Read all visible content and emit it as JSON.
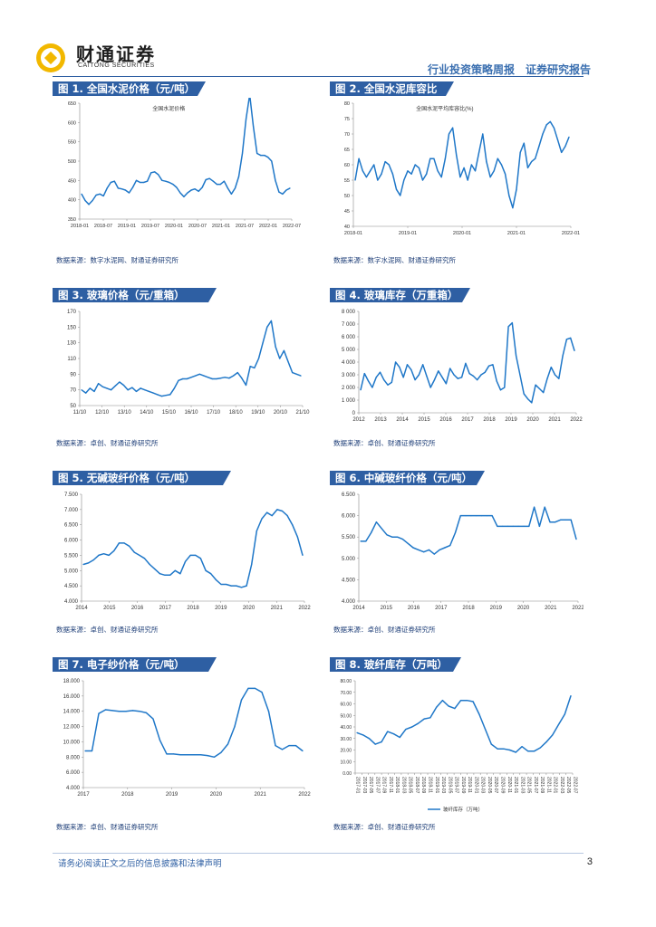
{
  "header": {
    "brand_cn": "财通证券",
    "brand_en": "CAITONG SECURITIES",
    "report_title": "行业投资策略周报　证券研究报告"
  },
  "footer": {
    "disclaimer": "请务必阅读正文之后的信息披露和法律声明",
    "page_number": "3"
  },
  "colors": {
    "accent": "#2e5fa3",
    "line": "#1f77c8"
  },
  "figures": [
    {
      "title": "图 1. 全国水泥价格（元/吨）",
      "source": "数据来源：数字水泥网、财通证券研究所"
    },
    {
      "title": "图 2. 全国水泥库容比",
      "source": "数据来源：数字水泥网、财通证券研究所"
    },
    {
      "title": "图 3. 玻璃价格（元/重箱）",
      "source": "数据来源：卓创、财通证券研究所"
    },
    {
      "title": "图 4. 玻璃库存（万重箱）",
      "source": "数据来源：卓创、财通证券研究所"
    },
    {
      "title": "图 5. 无碱玻纤价格（元/吨）",
      "source": "数据来源：卓创、财通证券研究所"
    },
    {
      "title": "图 6. 中碱玻纤价格（元/吨）",
      "source": "数据来源：卓创、财通证券研究所"
    },
    {
      "title": "图 7. 电子纱价格（元/吨）",
      "source": "数据来源：卓创、财通证券研究所"
    },
    {
      "title": "图 8. 玻纤库存（万吨）",
      "source": "数据来源：卓创、财通证券研究所"
    }
  ],
  "chart_data": [
    {
      "type": "line",
      "inner_title": "全国水泥价格",
      "x_ticks": [
        "2018-01",
        "2018-07",
        "2019-01",
        "2019-07",
        "2020-01",
        "2020-07",
        "2021-01",
        "2021-07",
        "2022-01",
        "2022-07"
      ],
      "y_ticks": [
        "350",
        "400",
        "450",
        "500",
        "550",
        "600",
        "650"
      ],
      "ylim": [
        350,
        650
      ],
      "values": [
        415,
        398,
        388,
        398,
        412,
        415,
        410,
        430,
        445,
        448,
        430,
        428,
        425,
        418,
        432,
        450,
        445,
        445,
        448,
        470,
        472,
        465,
        450,
        448,
        445,
        440,
        432,
        418,
        408,
        418,
        425,
        428,
        422,
        432,
        452,
        455,
        448,
        440,
        440,
        448,
        430,
        415,
        430,
        460,
        520,
        610,
        672,
        590,
        520,
        515,
        515,
        510,
        500,
        450,
        420,
        415,
        425,
        430
      ]
    },
    {
      "type": "line",
      "inner_title": "全国水泥平均库容比(%)",
      "x_ticks": [
        "2018-01",
        "2019-01",
        "2020-01",
        "2021-01",
        "2022-01"
      ],
      "y_ticks": [
        "40",
        "45",
        "50",
        "55",
        "60",
        "65",
        "70",
        "75",
        "80"
      ],
      "ylim": [
        40,
        80
      ],
      "values": [
        55,
        62,
        58,
        56,
        58,
        60,
        55,
        57,
        61,
        60,
        57,
        52,
        50,
        55,
        58,
        57,
        60,
        59,
        55,
        57,
        62,
        62,
        58,
        56,
        62,
        70,
        72,
        63,
        56,
        59,
        55,
        60,
        58,
        64,
        70,
        61,
        56,
        58,
        62,
        60,
        57,
        50,
        46,
        52,
        64,
        67,
        59,
        61,
        62,
        66,
        70,
        73,
        74,
        72,
        68,
        64,
        66,
        69
      ]
    },
    {
      "type": "line",
      "x_ticks": [
        "11/10",
        "12/10",
        "13/10",
        "14/10",
        "15/10",
        "16/10",
        "17/10",
        "18/10",
        "19/10",
        "20/10",
        "21/10"
      ],
      "y_ticks": [
        "50",
        "70",
        "90",
        "110",
        "130",
        "150",
        "170"
      ],
      "ylim": [
        50,
        170
      ],
      "values": [
        70,
        66,
        72,
        68,
        78,
        74,
        72,
        70,
        75,
        80,
        76,
        70,
        73,
        68,
        72,
        70,
        68,
        66,
        64,
        62,
        63,
        64,
        72,
        82,
        84,
        84,
        86,
        88,
        90,
        88,
        86,
        84,
        84,
        85,
        86,
        85,
        88,
        92,
        85,
        76,
        100,
        98,
        110,
        130,
        150,
        158,
        125,
        110,
        120,
        106,
        92,
        90,
        88
      ]
    },
    {
      "type": "line",
      "x_ticks": [
        "2012",
        "2013",
        "2014",
        "2015",
        "2016",
        "2017",
        "2018",
        "2019",
        "2020",
        "2021",
        "2022"
      ],
      "y_ticks": [
        "0",
        "1 000",
        "2 000",
        "3 000",
        "4 000",
        "5 000",
        "6 000",
        "7 000",
        "8 000"
      ],
      "ylim": [
        0,
        8000
      ],
      "values": [
        1800,
        3100,
        2500,
        2000,
        2800,
        3200,
        2600,
        2200,
        2400,
        4000,
        3600,
        2800,
        3800,
        3400,
        2600,
        3000,
        3800,
        2900,
        2000,
        2600,
        3300,
        2800,
        2300,
        3500,
        3000,
        2700,
        2800,
        3900,
        3100,
        2900,
        2600,
        3000,
        3200,
        3700,
        3800,
        2500,
        1800,
        2000,
        6800,
        7100,
        4500,
        3000,
        1500,
        1100,
        800,
        2200,
        1900,
        1600,
        2700,
        3600,
        3000,
        2700,
        4500,
        5800,
        5900,
        4900
      ]
    },
    {
      "type": "line",
      "x_ticks": [
        "2014",
        "2015",
        "2016",
        "2017",
        "2018",
        "2019",
        "2020",
        "2021",
        "2022"
      ],
      "y_ticks": [
        "4.000",
        "4.500",
        "5.000",
        "5.500",
        "6.000",
        "6.500",
        "7.000",
        "7.500"
      ],
      "ylim": [
        4000,
        7500
      ],
      "values": [
        5200,
        5250,
        5350,
        5500,
        5550,
        5500,
        5650,
        5900,
        5900,
        5800,
        5600,
        5500,
        5400,
        5200,
        5050,
        4900,
        4850,
        4850,
        5000,
        4900,
        5300,
        5500,
        5500,
        5400,
        5000,
        4900,
        4700,
        4550,
        4550,
        4500,
        4500,
        4450,
        4500,
        5200,
        6300,
        6700,
        6900,
        6800,
        7000,
        6950,
        6800,
        6500,
        6100,
        5500
      ]
    },
    {
      "type": "line",
      "x_ticks": [
        "2014",
        "2015",
        "2016",
        "2017",
        "2018",
        "2019",
        "2020",
        "2021",
        "2022"
      ],
      "y_ticks": [
        "4.000",
        "4.500",
        "5.000",
        "5.500",
        "6.000",
        "6.500"
      ],
      "ylim": [
        4000,
        6500
      ],
      "values": [
        5400,
        5400,
        5600,
        5850,
        5700,
        5550,
        5500,
        5500,
        5450,
        5350,
        5250,
        5200,
        5150,
        5200,
        5100,
        5200,
        5250,
        5300,
        5600,
        6000,
        6000,
        6000,
        6000,
        6000,
        6000,
        6000,
        5750,
        5750,
        5750,
        5750,
        5750,
        5750,
        5750,
        6200,
        5750,
        6200,
        5850,
        5850,
        5900,
        5900,
        5900,
        5450
      ]
    },
    {
      "type": "line",
      "x_ticks": [
        "2017",
        "2018",
        "2019",
        "2020",
        "2021",
        "2022"
      ],
      "y_ticks": [
        "4.000",
        "6.000",
        "8.000",
        "10.000",
        "12.000",
        "14.000",
        "16.000",
        "18.000"
      ],
      "ylim": [
        4000,
        18000
      ],
      "values": [
        8800,
        8800,
        13700,
        14200,
        14100,
        14000,
        14000,
        14100,
        14000,
        13800,
        13000,
        10200,
        8400,
        8400,
        8300,
        8300,
        8300,
        8300,
        8200,
        8000,
        8600,
        9700,
        12000,
        15500,
        17000,
        17000,
        16500,
        14000,
        9500,
        9000,
        9500,
        9500,
        8800
      ]
    },
    {
      "type": "line",
      "legend": "玻纤库存（万吨）",
      "y_ticks": [
        "0.00",
        "10.00",
        "20.00",
        "30.00",
        "40.00",
        "50.00",
        "60.00",
        "70.00",
        "80.00"
      ],
      "ylim": [
        0,
        80
      ],
      "x_ticks": [
        "2017-01",
        "2017-03",
        "2017-05",
        "2017-07",
        "2017-09",
        "2017-11",
        "2018-01",
        "2018-03",
        "2018-05",
        "2018-07",
        "2018-09",
        "2018-11",
        "2019-01",
        "2019-03",
        "2019-05",
        "2019-07",
        "2019-09",
        "2019-11",
        "2020-01",
        "2020-03",
        "2020-05",
        "2020-07",
        "2020-09",
        "2020-11",
        "2021-01",
        "2021-03",
        "2021-05",
        "2021-07",
        "2021-09",
        "2021-11",
        "2022-01",
        "2022-03",
        "2022-05",
        "2022-07"
      ],
      "values": [
        35,
        33,
        30,
        25,
        27,
        36,
        34,
        31,
        38,
        40,
        43,
        47,
        48,
        57,
        63,
        58,
        56,
        63,
        63,
        62,
        51,
        38,
        25,
        21,
        21,
        20,
        18,
        23,
        19,
        19,
        22,
        27,
        33,
        42,
        51,
        67
      ]
    }
  ]
}
